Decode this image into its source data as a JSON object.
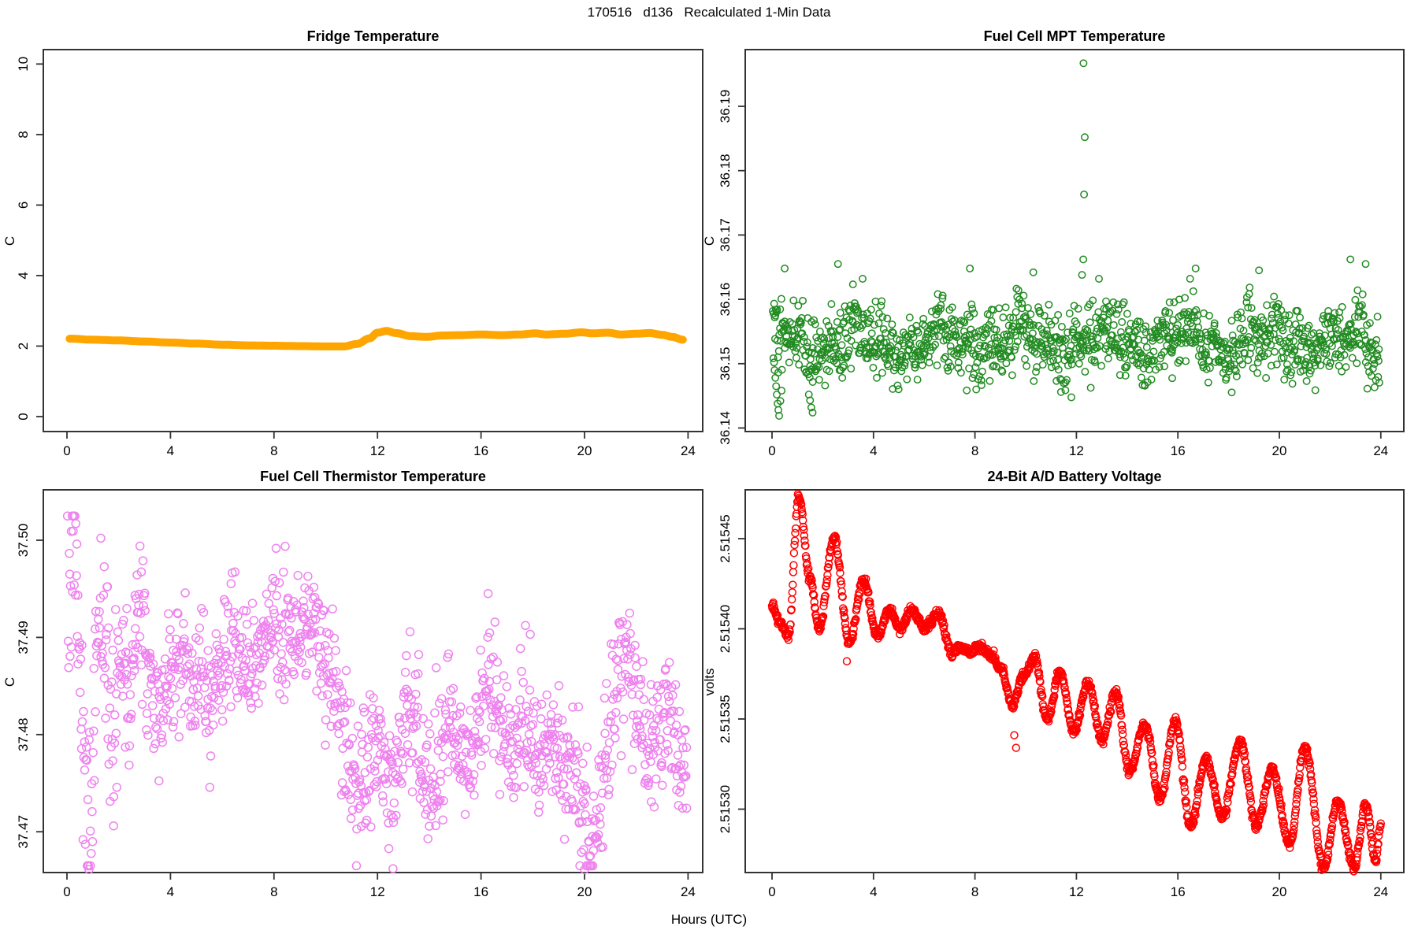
{
  "figure": {
    "title": "170516   d136   Recalculated 1-Min Data",
    "xlabel": "Hours (UTC)",
    "background": "#ffffff",
    "axis_color": "#333333",
    "x_tick_labels": [
      "0",
      "4",
      "8",
      "12",
      "16",
      "20",
      "24"
    ],
    "x_tick_values": [
      0,
      4,
      8,
      12,
      16,
      20,
      24
    ]
  },
  "chart_data": [
    {
      "id": "fridge",
      "type": "line",
      "title": "Fridge Temperature",
      "ylabel": "C",
      "xlabel": "Hours (UTC)",
      "xlim": [
        0,
        24
      ],
      "ylim": [
        0,
        10
      ],
      "y_tick_values": [
        0,
        2,
        4,
        6,
        8,
        10
      ],
      "y_tick_labels": [
        "0",
        "2",
        "4",
        "6",
        "8",
        "10"
      ],
      "color": "#FFA500",
      "line_width": 10,
      "keypoints": [
        [
          0.1,
          2.21
        ],
        [
          1,
          2.18
        ],
        [
          2,
          2.16
        ],
        [
          3,
          2.13
        ],
        [
          4,
          2.1
        ],
        [
          5,
          2.07
        ],
        [
          6,
          2.04
        ],
        [
          7,
          2.02
        ],
        [
          8,
          2.01
        ],
        [
          9,
          2.0
        ],
        [
          10,
          1.99
        ],
        [
          10.7,
          1.99
        ],
        [
          11.2,
          2.06
        ],
        [
          11.7,
          2.22
        ],
        [
          12.0,
          2.38
        ],
        [
          12.35,
          2.43
        ],
        [
          12.7,
          2.37
        ],
        [
          13.3,
          2.28
        ],
        [
          13.9,
          2.26
        ],
        [
          14.5,
          2.3
        ],
        [
          15.2,
          2.31
        ],
        [
          16.0,
          2.33
        ],
        [
          16.8,
          2.31
        ],
        [
          17.5,
          2.33
        ],
        [
          18.1,
          2.36
        ],
        [
          18.5,
          2.33
        ],
        [
          19.2,
          2.35
        ],
        [
          19.9,
          2.39
        ],
        [
          20.3,
          2.36
        ],
        [
          20.9,
          2.38
        ],
        [
          21.4,
          2.33
        ],
        [
          22.0,
          2.35
        ],
        [
          22.5,
          2.37
        ],
        [
          23.0,
          2.32
        ],
        [
          23.4,
          2.26
        ],
        [
          23.8,
          2.18
        ]
      ]
    },
    {
      "id": "mpt",
      "type": "scatter",
      "title": "Fuel Cell MPT Temperature",
      "ylabel": "C",
      "xlabel": "Hours (UTC)",
      "xlim": [
        0,
        24
      ],
      "ylim": [
        36.1374,
        36.1988
      ],
      "y_tick_values": [
        36.14,
        36.15,
        36.16,
        36.17,
        36.18,
        36.19
      ],
      "y_tick_labels": [
        "36.14",
        "36.15",
        "36.16",
        "36.17",
        "36.18",
        "36.19"
      ],
      "color": "#228B22",
      "marker": "open-circle",
      "marker_radius": 4.2,
      "n_points": 1300,
      "seed": 42,
      "band": {
        "mean": 36.1535,
        "wave1": {
          "amp": 0.0018,
          "period": 3.2,
          "phase": 1.0
        },
        "wave2": {
          "amp": 0.0012,
          "period": 1.1,
          "phase": 2.0
        },
        "sd": 0.0028,
        "clamp": [
          36.1418,
          36.1632
        ]
      },
      "outliers": [
        [
          0.08,
          36.1502
        ],
        [
          0.1,
          36.149
        ],
        [
          0.13,
          36.1478
        ],
        [
          0.16,
          36.1465
        ],
        [
          0.19,
          36.1452
        ],
        [
          0.22,
          36.1438
        ],
        [
          0.25,
          36.1428
        ],
        [
          0.28,
          36.1419
        ],
        [
          0.33,
          36.1442
        ],
        [
          0.38,
          36.1458
        ],
        [
          1.45,
          36.1452
        ],
        [
          1.5,
          36.1443
        ],
        [
          1.55,
          36.1432
        ],
        [
          1.6,
          36.1424
        ],
        [
          0.5,
          36.1648
        ],
        [
          2.6,
          36.1655
        ],
        [
          7.8,
          36.1648
        ],
        [
          10.3,
          36.1642
        ],
        [
          16.7,
          36.1648
        ],
        [
          19.2,
          36.1645
        ],
        [
          22.8,
          36.1662
        ],
        [
          23.4,
          36.1655
        ],
        [
          12.22,
          36.1638
        ],
        [
          12.27,
          36.1662
        ],
        [
          12.3,
          36.1763
        ],
        [
          12.33,
          36.1852
        ],
        [
          12.28,
          36.1967
        ]
      ]
    },
    {
      "id": "thermistor",
      "type": "scatter",
      "title": "Fuel Cell Thermistor Temperature",
      "ylabel": "C",
      "xlabel": "Hours (UTC)",
      "xlim": [
        0,
        24
      ],
      "ylim": [
        37.4658,
        37.5052
      ],
      "y_tick_values": [
        37.47,
        37.48,
        37.49,
        37.5
      ],
      "y_tick_labels": [
        "37.47",
        "37.48",
        "37.49",
        "37.50"
      ],
      "color": "#EE82EE",
      "marker": "open-circle",
      "marker_radius": 5,
      "n_points": 1300,
      "seed": 7,
      "mean_keypoints": [
        [
          0,
          37.493
        ],
        [
          0.3,
          37.498
        ],
        [
          0.6,
          37.48
        ],
        [
          0.9,
          37.469
        ],
        [
          1.2,
          37.494
        ],
        [
          1.5,
          37.489
        ],
        [
          1.8,
          37.478
        ],
        [
          2.1,
          37.49
        ],
        [
          2.4,
          37.483
        ],
        [
          2.8,
          37.494
        ],
        [
          3.2,
          37.487
        ],
        [
          3.6,
          37.481
        ],
        [
          4.0,
          37.486
        ],
        [
          4.4,
          37.489
        ],
        [
          4.8,
          37.485
        ],
        [
          5.2,
          37.487
        ],
        [
          5.6,
          37.484
        ],
        [
          6.0,
          37.487
        ],
        [
          6.4,
          37.49
        ],
        [
          6.8,
          37.487
        ],
        [
          7.2,
          37.488
        ],
        [
          7.6,
          37.49
        ],
        [
          8.0,
          37.491
        ],
        [
          8.4,
          37.489
        ],
        [
          8.8,
          37.49
        ],
        [
          9.2,
          37.492
        ],
        [
          9.6,
          37.49
        ],
        [
          10.0,
          37.487
        ],
        [
          10.4,
          37.483
        ],
        [
          10.8,
          37.478
        ],
        [
          11.2,
          37.474
        ],
        [
          11.6,
          37.478
        ],
        [
          12.0,
          37.48
        ],
        [
          12.4,
          37.474
        ],
        [
          12.8,
          37.478
        ],
        [
          13.2,
          37.482
        ],
        [
          13.6,
          37.479
        ],
        [
          14.0,
          37.475
        ],
        [
          14.4,
          37.478
        ],
        [
          14.8,
          37.482
        ],
        [
          15.2,
          37.479
        ],
        [
          15.6,
          37.477
        ],
        [
          16.0,
          37.482
        ],
        [
          16.4,
          37.486
        ],
        [
          16.8,
          37.482
        ],
        [
          17.2,
          37.478
        ],
        [
          17.6,
          37.481
        ],
        [
          18.0,
          37.479
        ],
        [
          18.4,
          37.477
        ],
        [
          18.8,
          37.479
        ],
        [
          19.2,
          37.475
        ],
        [
          19.6,
          37.477
        ],
        [
          20.0,
          37.471
        ],
        [
          20.4,
          37.469
        ],
        [
          20.8,
          37.478
        ],
        [
          21.2,
          37.486
        ],
        [
          21.6,
          37.49
        ],
        [
          22.0,
          37.483
        ],
        [
          22.4,
          37.478
        ],
        [
          22.8,
          37.48
        ],
        [
          23.2,
          37.482
        ],
        [
          23.6,
          37.478
        ],
        [
          24,
          37.476
        ]
      ],
      "amp_keypoints": [
        [
          0,
          0.0045
        ],
        [
          1,
          0.0048
        ],
        [
          2,
          0.0045
        ],
        [
          3,
          0.0042
        ],
        [
          4,
          0.0036
        ],
        [
          5,
          0.0032
        ],
        [
          6,
          0.003
        ],
        [
          7,
          0.003
        ],
        [
          8,
          0.003
        ],
        [
          9,
          0.0028
        ],
        [
          10,
          0.0032
        ],
        [
          11,
          0.0036
        ],
        [
          12,
          0.0036
        ],
        [
          13,
          0.0032
        ],
        [
          14,
          0.0032
        ],
        [
          15,
          0.0032
        ],
        [
          16,
          0.0032
        ],
        [
          17,
          0.0032
        ],
        [
          18,
          0.0032
        ],
        [
          19,
          0.0032
        ],
        [
          20,
          0.0036
        ],
        [
          21,
          0.0036
        ],
        [
          22,
          0.0032
        ],
        [
          23,
          0.0032
        ],
        [
          24,
          0.0032
        ]
      ],
      "clamp": [
        37.4665,
        37.5025
      ],
      "outliers": [
        [
          0.85,
          37.4661
        ],
        [
          12.6,
          37.4662
        ],
        [
          20.0,
          37.4661
        ]
      ]
    },
    {
      "id": "battery",
      "type": "scatter-line",
      "title": "24-Bit A/D Battery Voltage",
      "ylabel": "volts",
      "xlabel": "Hours (UTC)",
      "xlim": [
        0,
        24
      ],
      "ylim": [
        2.515265,
        2.515477
      ],
      "y_tick_values": [
        2.5153,
        2.51535,
        2.5154,
        2.51545
      ],
      "y_tick_labels": [
        "2.51530",
        "2.51535",
        "2.51540",
        "2.51545"
      ],
      "color": "#FF0000",
      "marker": "open-circle",
      "marker_radius": 4.5,
      "n_points": 1440,
      "seed": 99,
      "noise_sd": 1.3e-06,
      "extrema": [
        [
          0,
          2.515412
        ],
        [
          0.3,
          2.515404
        ],
        [
          0.65,
          2.515396
        ],
        [
          1.05,
          2.515473
        ],
        [
          1.5,
          2.515428
        ],
        [
          1.85,
          2.515401
        ],
        [
          2.45,
          2.51545
        ],
        [
          3.05,
          2.515392
        ],
        [
          3.6,
          2.515427
        ],
        [
          4.15,
          2.515396
        ],
        [
          4.65,
          2.515411
        ],
        [
          5.05,
          2.515399
        ],
        [
          5.5,
          2.515411
        ],
        [
          6.0,
          2.5154
        ],
        [
          6.55,
          2.515409
        ],
        [
          7.1,
          2.515386
        ],
        [
          7.4,
          2.51539
        ],
        [
          7.8,
          2.515387
        ],
        [
          8.2,
          2.51539
        ],
        [
          8.6,
          2.515386
        ],
        [
          9.0,
          2.515378
        ],
        [
          9.5,
          2.515358
        ],
        [
          9.9,
          2.515374
        ],
        [
          10.35,
          2.515384
        ],
        [
          10.85,
          2.515349
        ],
        [
          11.35,
          2.515376
        ],
        [
          11.9,
          2.515343
        ],
        [
          12.45,
          2.51537
        ],
        [
          13.0,
          2.515339
        ],
        [
          13.55,
          2.515364
        ],
        [
          14.1,
          2.515321
        ],
        [
          14.7,
          2.515347
        ],
        [
          15.3,
          2.515306
        ],
        [
          15.9,
          2.515349
        ],
        [
          16.5,
          2.515291
        ],
        [
          17.1,
          2.515327
        ],
        [
          17.75,
          2.515296
        ],
        [
          18.45,
          2.515337
        ],
        [
          19.1,
          2.515291
        ],
        [
          19.7,
          2.515322
        ],
        [
          20.4,
          2.515281
        ],
        [
          21.0,
          2.515334
        ],
        [
          21.75,
          2.515268
        ],
        [
          22.3,
          2.515304
        ],
        [
          22.95,
          2.515268
        ],
        [
          23.4,
          2.515302
        ],
        [
          23.8,
          2.515272
        ],
        [
          24,
          2.515291
        ]
      ],
      "outliers": [
        [
          2.95,
          2.515382
        ],
        [
          9.55,
          2.515341
        ],
        [
          9.62,
          2.515334
        ]
      ]
    }
  ]
}
